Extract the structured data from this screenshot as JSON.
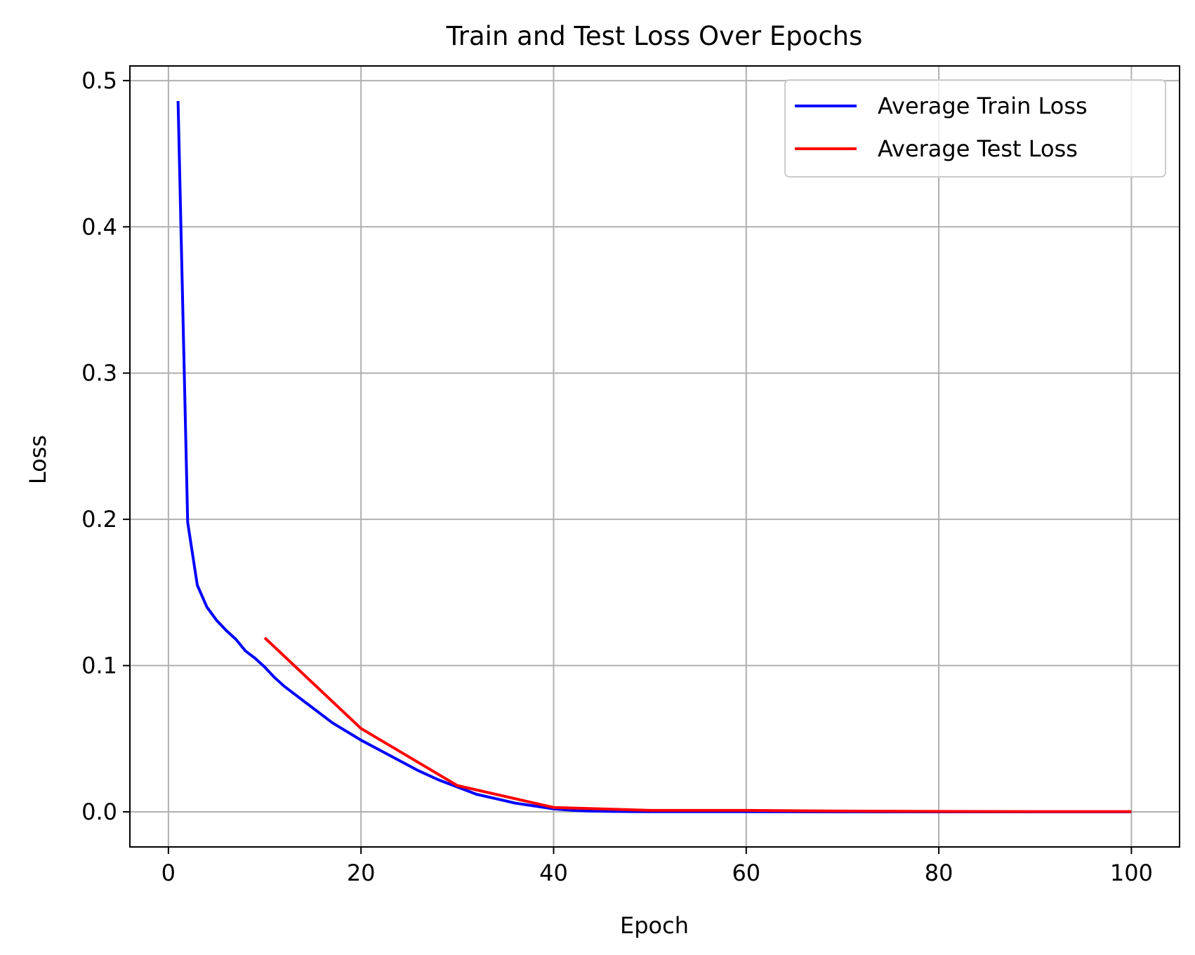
{
  "chart_data": {
    "type": "line",
    "title": "Train and Test Loss Over Epochs",
    "xlabel": "Epoch",
    "ylabel": "Loss",
    "xlim": [
      -4,
      105
    ],
    "ylim": [
      -0.024,
      0.51
    ],
    "xticks": [
      0,
      20,
      40,
      60,
      80,
      100
    ],
    "xtick_labels": [
      "0",
      "20",
      "40",
      "60",
      "80",
      "100"
    ],
    "yticks": [
      0.0,
      0.1,
      0.2,
      0.3,
      0.4,
      0.5
    ],
    "ytick_labels": [
      "0.0",
      "0.1",
      "0.2",
      "0.3",
      "0.4",
      "0.5"
    ],
    "grid": true,
    "legend_position": "upper right",
    "series": [
      {
        "name": "Average Train Loss",
        "color": "#0000ff",
        "x": [
          1,
          2,
          3,
          4,
          5,
          6,
          7,
          8,
          9,
          10,
          11,
          12,
          13,
          14,
          15,
          16,
          17,
          18,
          19,
          20,
          22,
          24,
          26,
          28,
          30,
          32,
          34,
          36,
          38,
          40,
          42,
          44,
          46,
          48,
          50,
          60,
          70,
          80,
          90,
          100
        ],
        "y": [
          0.486,
          0.198,
          0.155,
          0.14,
          0.131,
          0.124,
          0.118,
          0.11,
          0.105,
          0.099,
          0.092,
          0.086,
          0.081,
          0.076,
          0.071,
          0.066,
          0.061,
          0.057,
          0.053,
          0.049,
          0.042,
          0.035,
          0.028,
          0.022,
          0.017,
          0.012,
          0.009,
          0.006,
          0.004,
          0.002,
          0.001,
          0.0005,
          0.0003,
          0.0002,
          0.0001,
          0.0001,
          0.0,
          0.0,
          0.0,
          0.0
        ]
      },
      {
        "name": "Average Test Loss",
        "color": "#ff0000",
        "x": [
          10,
          20,
          30,
          40,
          50,
          60,
          70,
          80,
          90,
          100
        ],
        "y": [
          0.119,
          0.057,
          0.018,
          0.003,
          0.001,
          0.001,
          0.0005,
          0.0003,
          0.0002,
          0.0002
        ]
      }
    ]
  }
}
